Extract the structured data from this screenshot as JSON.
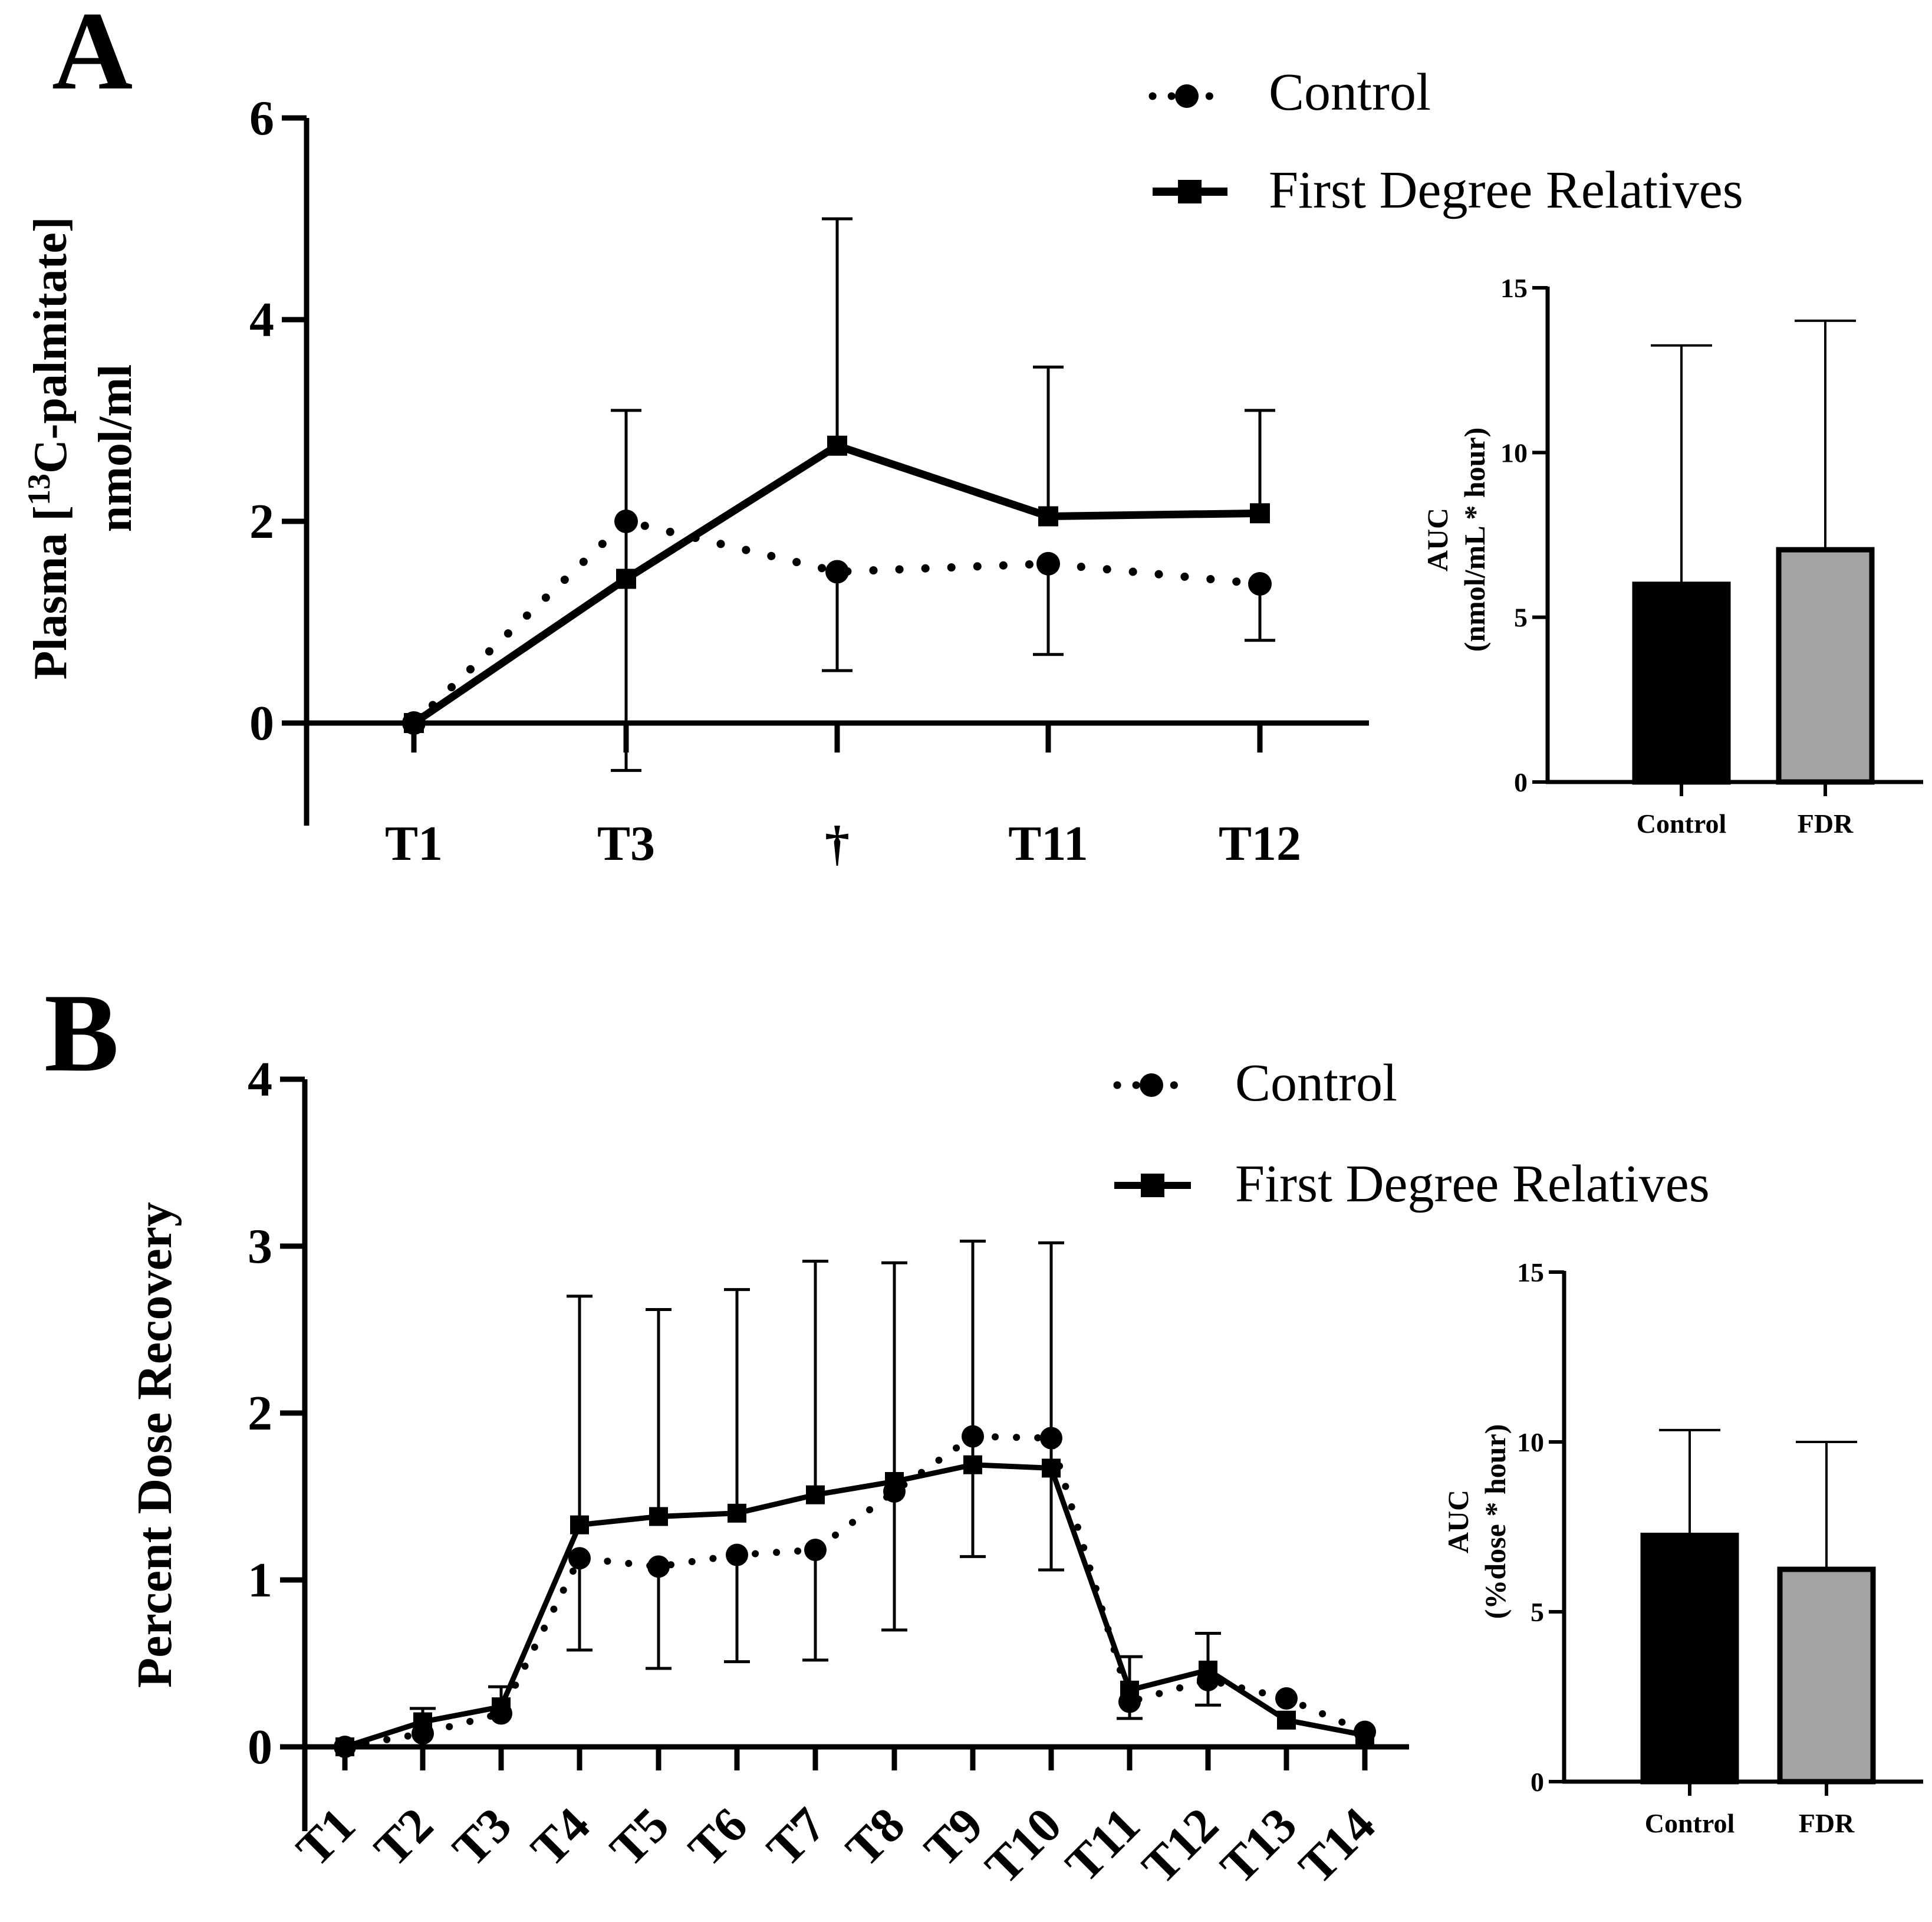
{
  "panel_labels": [
    "A",
    "B"
  ],
  "colors": {
    "control_bar": "#000000",
    "fdr_bar": "#a3a3a6",
    "line": "#000000"
  },
  "chart_data": [
    {
      "id": "A_line",
      "type": "line",
      "title": "",
      "ylabel_line1": "Plasma [13C-palmitate]",
      "ylabel_line2": "nmol/ml",
      "ylabel_prefix": "Plasma [",
      "ylabel_sup": "13",
      "ylabel_suffix": "C-palmitate]",
      "ylim": [
        -1,
        6
      ],
      "yticks": [
        0,
        2,
        4,
        6
      ],
      "x": [
        "T1",
        "T3",
        "†",
        "T11",
        "T12"
      ],
      "legend": [
        "Control",
        "First Degree Relatives"
      ],
      "series": [
        {
          "name": "Control",
          "style": "dotted",
          "marker": "circle",
          "values": [
            0,
            2.0,
            1.5,
            1.58,
            1.38
          ],
          "err_upper": [
            null,
            null,
            null,
            null,
            null
          ],
          "err_lower": [
            null,
            null,
            0.52,
            0.68,
            0.82
          ]
        },
        {
          "name": "First Degree Relatives",
          "style": "solid",
          "marker": "square",
          "values": [
            0,
            1.43,
            2.75,
            2.05,
            2.08
          ],
          "err_upper": [
            null,
            3.1,
            5.0,
            3.53,
            3.1
          ],
          "err_lower": [
            null,
            -0.47,
            null,
            null,
            null
          ]
        }
      ]
    },
    {
      "id": "A_bar",
      "type": "bar",
      "ylabel_line1": "AUC",
      "ylabel_line2": "(nmol/mL * hour)",
      "ylim": [
        0,
        15
      ],
      "yticks": [
        0,
        5,
        10,
        15
      ],
      "categories": [
        "Control",
        "FDR"
      ],
      "values": [
        6.0,
        7.05
      ],
      "err_upper": [
        13.25,
        14.0
      ]
    },
    {
      "id": "B_line",
      "type": "line",
      "ylabel": "Percent Dose Recovery",
      "ylim": [
        -0.5,
        4
      ],
      "yticks": [
        0,
        1,
        2,
        3,
        4
      ],
      "x": [
        "T1",
        "T2",
        "T3",
        "T4",
        "T5",
        "T6",
        "T7",
        "T8",
        "T9",
        "T10",
        "T11",
        "T12",
        "T13",
        "T14"
      ],
      "legend": [
        "Control",
        "First Degree Relatives"
      ],
      "series": [
        {
          "name": "Control",
          "style": "dotted",
          "marker": "circle",
          "values": [
            0,
            0.08,
            0.2,
            1.13,
            1.08,
            1.15,
            1.18,
            1.53,
            1.86,
            1.85,
            0.27,
            0.4,
            0.29,
            0.09
          ],
          "err_upper": [
            null,
            null,
            null,
            null,
            null,
            null,
            null,
            null,
            null,
            null,
            null,
            null,
            null,
            null
          ],
          "err_lower": [
            null,
            null,
            null,
            0.58,
            0.47,
            0.51,
            0.52,
            0.7,
            1.14,
            1.06,
            0.17,
            0.25,
            null,
            null
          ]
        },
        {
          "name": "First Degree Relatives",
          "style": "solid",
          "marker": "square",
          "values": [
            0,
            0.15,
            0.24,
            1.33,
            1.38,
            1.4,
            1.51,
            1.59,
            1.69,
            1.67,
            0.34,
            0.46,
            0.16,
            0.07
          ],
          "err_upper": [
            null,
            0.23,
            0.36,
            2.7,
            2.62,
            2.74,
            2.91,
            2.9,
            3.03,
            3.02,
            0.54,
            0.68,
            null,
            null
          ],
          "err_lower": [
            null,
            null,
            null,
            null,
            null,
            null,
            null,
            null,
            null,
            null,
            null,
            null,
            null,
            null
          ]
        }
      ]
    },
    {
      "id": "B_bar",
      "type": "bar",
      "ylabel_line1": "AUC",
      "ylabel_line2": "(%dose * hour)",
      "ylim": [
        0,
        15
      ],
      "yticks": [
        0,
        5,
        10,
        15
      ],
      "categories": [
        "Control",
        "FDR"
      ],
      "values": [
        7.25,
        6.25
      ],
      "err_upper": [
        10.35,
        10.0
      ]
    }
  ]
}
